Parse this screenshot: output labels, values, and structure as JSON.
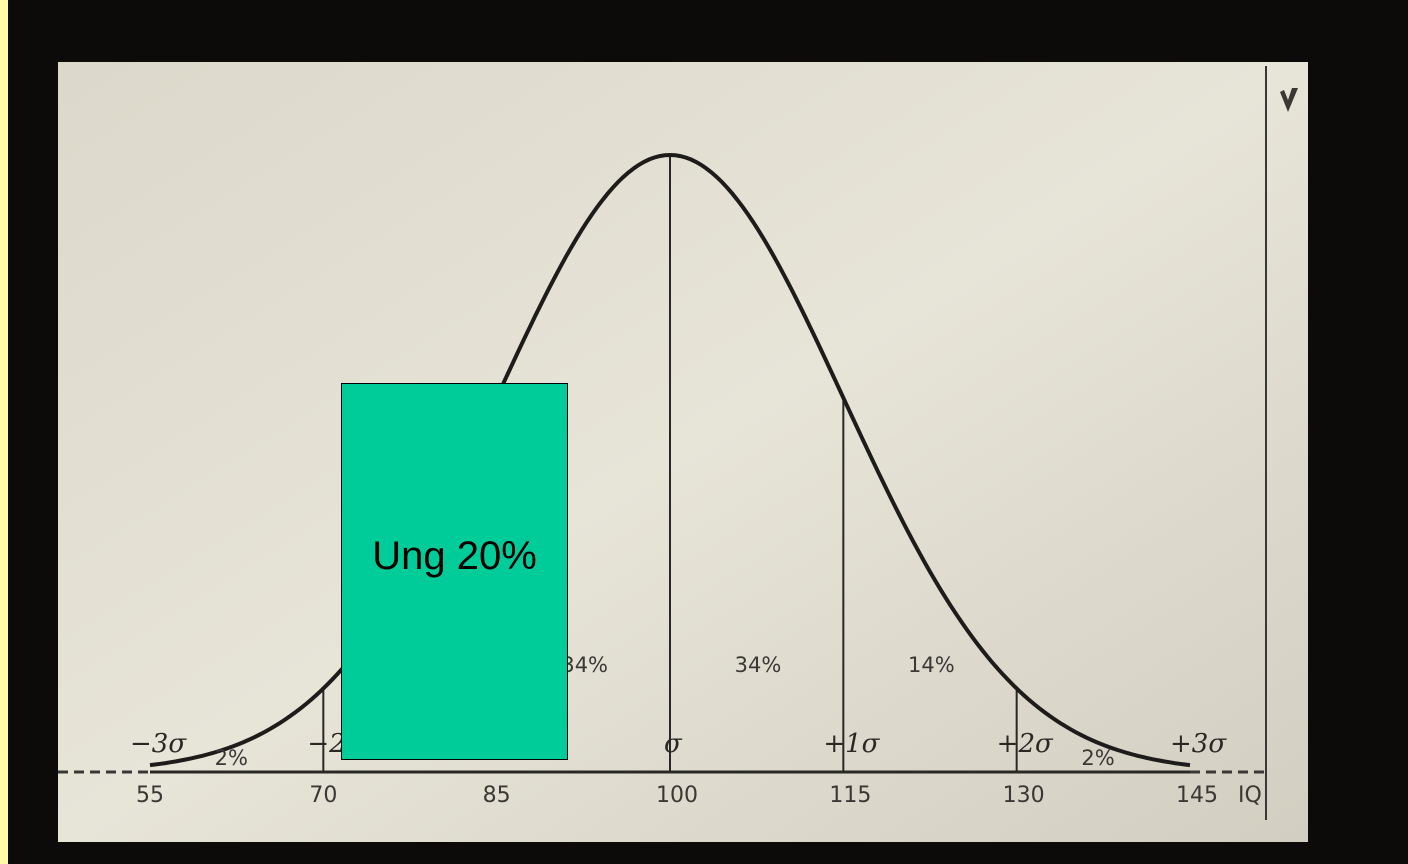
{
  "chart_data": {
    "type": "line",
    "title": "",
    "xlabel": "IQ",
    "ylabel": "",
    "mean": 100,
    "sd": 15,
    "xlim": [
      55,
      145
    ],
    "x_ticks": [
      "55",
      "70",
      "85",
      "100",
      "115",
      "130",
      "145"
    ],
    "sigma_labels": [
      "−3σ",
      "−2σ",
      "σ",
      "+1σ",
      "+2σ",
      "+3σ"
    ],
    "region_labels": [
      {
        "text": "2%",
        "x": 62.5
      },
      {
        "text": "34%",
        "x": 92.5
      },
      {
        "text": "34%",
        "x": 107.5
      },
      {
        "text": "14%",
        "x": 122.5
      },
      {
        "text": "2%",
        "x": 137.5
      }
    ],
    "curve": {
      "x": [
        55,
        60,
        65,
        70,
        75,
        80,
        85,
        90,
        95,
        100,
        105,
        110,
        115,
        120,
        125,
        130,
        135,
        140,
        145
      ],
      "y": [
        0.011,
        0.029,
        0.066,
        0.135,
        0.249,
        0.411,
        0.607,
        0.801,
        0.946,
        1.0,
        0.946,
        0.801,
        0.607,
        0.411,
        0.249,
        0.135,
        0.066,
        0.029,
        0.011
      ]
    },
    "vertical_lines_at": [
      70,
      100,
      115,
      130
    ]
  },
  "overlay": {
    "label": "Ung 20%",
    "color": "#00cc99",
    "covers_x": [
      70,
      90
    ]
  }
}
